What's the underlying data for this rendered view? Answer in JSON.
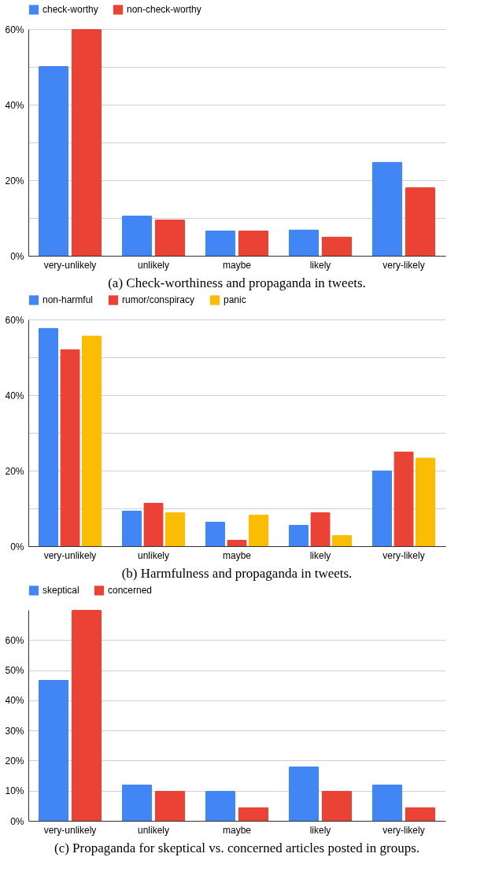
{
  "chart_data": [
    {
      "type": "bar",
      "title": "(a) Check-worthiness and propaganda in tweets.",
      "categories": [
        "very-unlikely",
        "unlikely",
        "maybe",
        "likely",
        "very-likely"
      ],
      "series": [
        {
          "name": "check-worthy",
          "color": "#4285f4",
          "values": [
            50.2,
            10.6,
            6.7,
            7.0,
            24.9
          ]
        },
        {
          "name": "non-check-worthy",
          "color": "#ea4335",
          "values": [
            60,
            9.6,
            6.7,
            5.1,
            18.1
          ]
        }
      ],
      "ylim": [
        0,
        60
      ],
      "yticks": [
        {
          "value": 0,
          "label": "0%"
        },
        {
          "value": 10,
          "label": null
        },
        {
          "value": 20,
          "label": "20%"
        },
        {
          "value": 30,
          "label": null
        },
        {
          "value": 40,
          "label": "40%"
        },
        {
          "value": 50,
          "label": null
        },
        {
          "value": 60,
          "label": "60%"
        }
      ],
      "grid": "y",
      "legend": "top"
    },
    {
      "type": "bar",
      "title": "(b) Harmfulness and propaganda in tweets.",
      "categories": [
        "very-unlikely",
        "unlikely",
        "maybe",
        "likely",
        "very-likely"
      ],
      "series": [
        {
          "name": "non-harmful",
          "color": "#4285f4",
          "values": [
            57.8,
            9.5,
            6.5,
            5.7,
            20.1
          ]
        },
        {
          "name": "rumor/conspiracy",
          "color": "#ea4335",
          "values": [
            52.2,
            11.5,
            1.7,
            9.0,
            25.1
          ]
        },
        {
          "name": "panic",
          "color": "#fbbc04",
          "values": [
            55.8,
            9.0,
            8.4,
            2.9,
            23.5
          ]
        }
      ],
      "ylim": [
        0,
        60
      ],
      "yticks": [
        {
          "value": 0,
          "label": "0%"
        },
        {
          "value": 10,
          "label": null
        },
        {
          "value": 20,
          "label": "20%"
        },
        {
          "value": 30,
          "label": null
        },
        {
          "value": 40,
          "label": "40%"
        },
        {
          "value": 50,
          "label": null
        },
        {
          "value": 60,
          "label": "60%"
        }
      ],
      "grid": "y",
      "legend": "top"
    },
    {
      "type": "bar",
      "title": "(c) Propaganda for skeptical vs. concerned articles posted in groups.",
      "categories": [
        "very-unlikely",
        "unlikely",
        "maybe",
        "likely",
        "very-likely"
      ],
      "series": [
        {
          "name": "skeptical",
          "color": "#4285f4",
          "values": [
            46.8,
            12.1,
            9.9,
            18.0,
            12.1
          ]
        },
        {
          "name": "concerned",
          "color": "#ea4335",
          "values": [
            70,
            10,
            4.6,
            10,
            4.6
          ]
        }
      ],
      "ylim": [
        0,
        70
      ],
      "yticks": [
        {
          "value": 0,
          "label": "0%"
        },
        {
          "value": 10,
          "label": "10%"
        },
        {
          "value": 20,
          "label": "20%"
        },
        {
          "value": 30,
          "label": "30%"
        },
        {
          "value": 40,
          "label": "40%"
        },
        {
          "value": 50,
          "label": "50%"
        },
        {
          "value": 60,
          "label": "60%"
        }
      ],
      "grid": "y",
      "legend": "top"
    }
  ]
}
